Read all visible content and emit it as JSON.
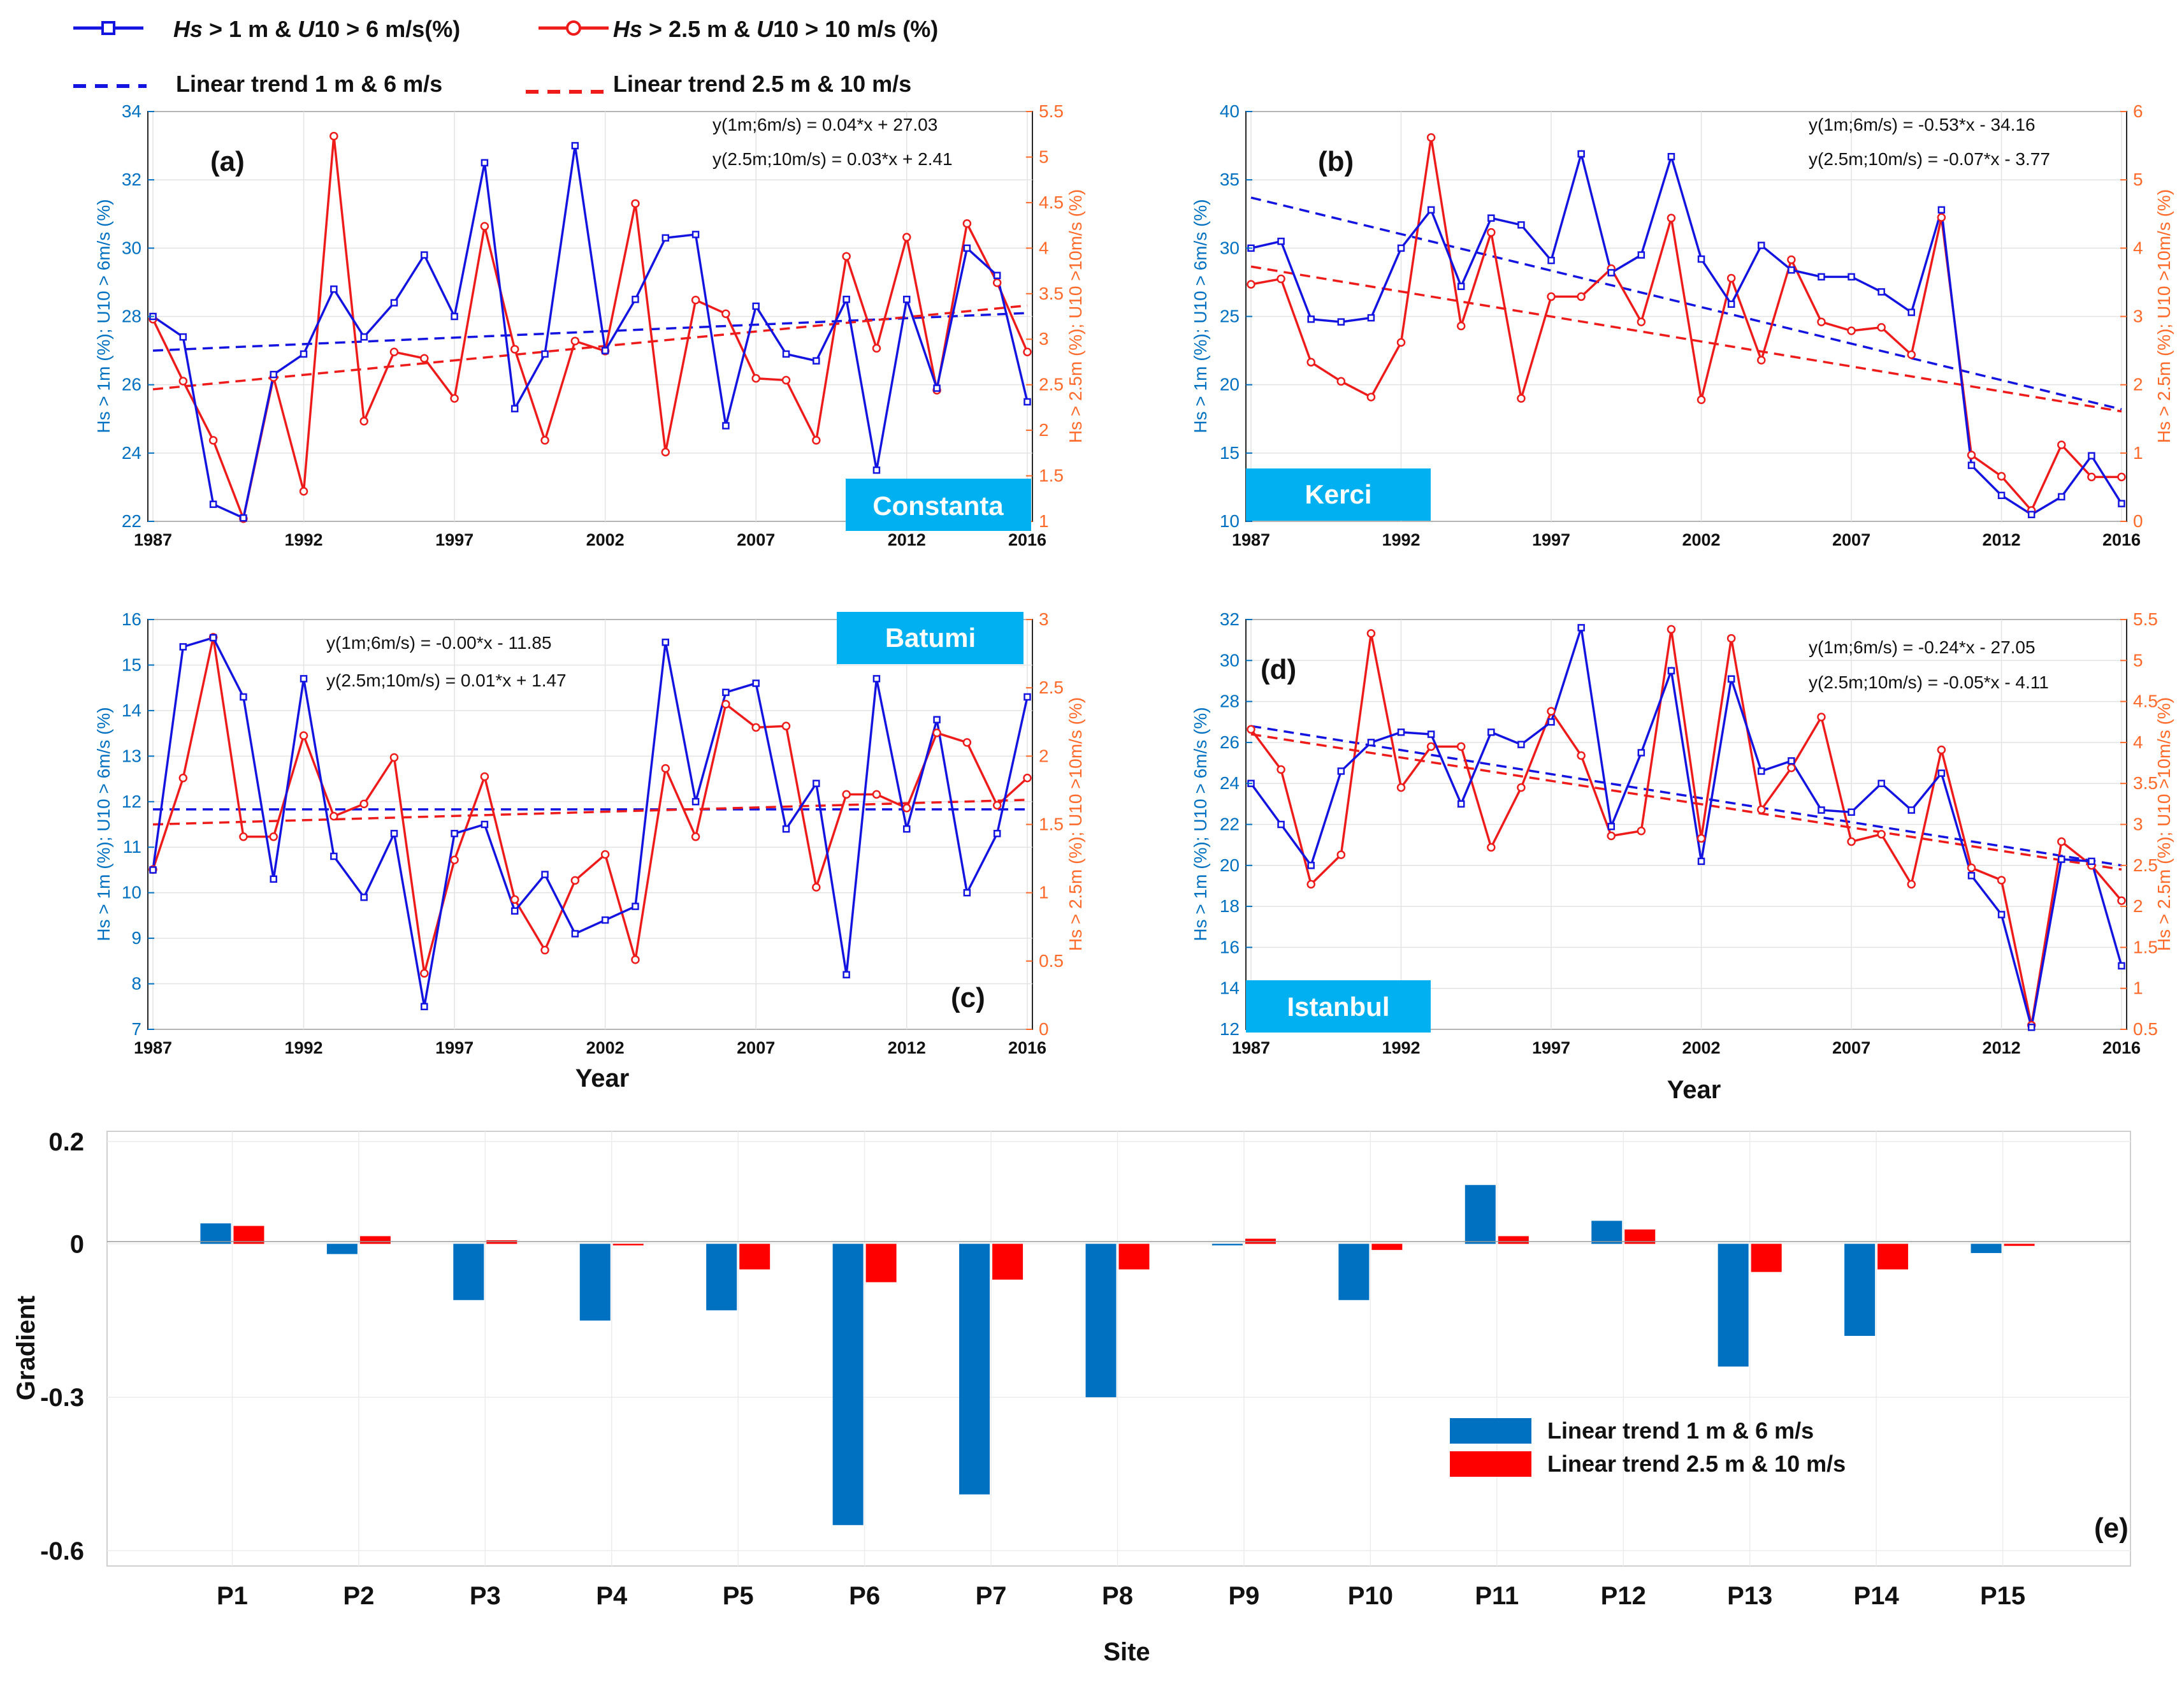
{
  "legend_top": {
    "hs1_prefix": "Hs",
    "hs1_mid": " > 1 m & ",
    "hs1_u": "U",
    "hs1_suffix": "10 > 6 m/s(%)",
    "hs25_prefix": "Hs",
    "hs25_mid": " > 2.5 m & ",
    "hs25_u": "U",
    "hs25_suffix": "10 > 10 m/s (%)",
    "trend1": "Linear trend 1 m & 6 m/s",
    "trend25": "Linear trend 2.5 m & 10 m/s"
  },
  "colors": {
    "blue": "#1414e0",
    "red": "#ee1b1b",
    "left_axis": "#0070c0",
    "right_axis": "#ff6a2a",
    "badge": "#00b0f0",
    "bar_blue": "#0070c0",
    "bar_red": "#ff0000"
  },
  "chart_data": [
    {
      "id": "a",
      "type": "line",
      "panel_label": "(a)",
      "site": "Constanta",
      "years": [
        1987,
        1988,
        1989,
        1990,
        1991,
        1992,
        1993,
        1994,
        1995,
        1996,
        1997,
        1998,
        1999,
        2000,
        2001,
        2002,
        2003,
        2004,
        2005,
        2006,
        2007,
        2008,
        2009,
        2010,
        2011,
        2012,
        2013,
        2014,
        2015,
        2016
      ],
      "year_ticks": [
        "1987",
        "1992",
        "1997",
        "2002",
        "2007",
        "2012",
        "2016"
      ],
      "ylabel_left": "Hs > 1m (%); U10 > 6m/s (%)",
      "ylabel_right": "Hs > 2.5m (%); U10 >10m/s (%)",
      "y_left": {
        "min": 22,
        "max": 34,
        "ticks": [
          22,
          24,
          26,
          28,
          30,
          32,
          34
        ]
      },
      "y_right": {
        "min": 1,
        "max": 5.5,
        "ticks": [
          1,
          1.5,
          2,
          2.5,
          3,
          3.5,
          4,
          4.5,
          5,
          5.5
        ]
      },
      "eq1": "y(1m;6m/s) = 0.04*x + 27.03",
      "eq2": "y(2.5m;10m/s) = 0.03*x + 2.41",
      "xlabel": "",
      "series": [
        {
          "name": "Hs > 1 m & U10 > 6 m/s(%)",
          "axis": "left",
          "values": [
            28.0,
            27.4,
            22.5,
            22.1,
            26.3,
            26.9,
            28.8,
            27.4,
            28.4,
            29.8,
            28.0,
            32.5,
            25.3,
            26.9,
            33.0,
            27.0,
            28.5,
            30.3,
            30.4,
            24.8,
            28.3,
            26.9,
            26.7,
            28.5,
            23.5,
            28.5,
            25.9,
            30.0,
            29.2,
            25.5
          ]
        },
        {
          "name": "Hs > 2.5 m & U10 > 10 m/s (%)",
          "axis": "right",
          "values": [
            3.22,
            2.54,
            1.89,
            1.03,
            2.58,
            1.33,
            5.23,
            2.1,
            2.86,
            2.79,
            2.35,
            4.24,
            2.89,
            1.89,
            2.98,
            2.87,
            4.49,
            1.76,
            3.43,
            3.28,
            2.57,
            2.55,
            1.89,
            3.91,
            2.9,
            4.12,
            2.44,
            4.27,
            3.62,
            2.86
          ]
        },
        {
          "name": "Linear trend 1 m & 6 m/s",
          "axis": "left",
          "trend": [
            27.0,
            28.1
          ]
        },
        {
          "name": "Linear trend 2.5 m & 10 m/s",
          "axis": "right",
          "trend": [
            2.45,
            3.37
          ]
        }
      ]
    },
    {
      "id": "b",
      "type": "line",
      "panel_label": "(b)",
      "site": "Kerci",
      "years": [
        1987,
        1988,
        1989,
        1990,
        1991,
        1992,
        1993,
        1994,
        1995,
        1996,
        1997,
        1998,
        1999,
        2000,
        2001,
        2002,
        2003,
        2004,
        2005,
        2006,
        2007,
        2008,
        2009,
        2010,
        2011,
        2012,
        2013,
        2014,
        2015,
        2016
      ],
      "year_ticks": [
        "1987",
        "1992",
        "1997",
        "2002",
        "2007",
        "2012",
        "2016"
      ],
      "ylabel_left": "Hs > 1m (%); U10 > 6m/s (%)",
      "ylabel_right": "Hs > 2.5m (%); U10 >10m/s (%)",
      "y_left": {
        "min": 10,
        "max": 40,
        "ticks": [
          10,
          15,
          20,
          25,
          30,
          35,
          40
        ]
      },
      "y_right": {
        "min": 0,
        "max": 6,
        "ticks": [
          0,
          1,
          2,
          3,
          4,
          5,
          6
        ]
      },
      "eq1": "y(1m;6m/s) = -0.53*x - 34.16",
      "eq2": "y(2.5m;10m/s) = -0.07*x - 3.77",
      "xlabel": "",
      "series": [
        {
          "name": "Hs > 1 m & U10 > 6 m/s(%)",
          "axis": "left",
          "values": [
            30.0,
            30.5,
            24.8,
            24.6,
            24.9,
            30.0,
            32.8,
            27.2,
            32.2,
            31.7,
            29.1,
            36.9,
            28.2,
            29.5,
            36.7,
            29.2,
            25.9,
            30.2,
            28.4,
            27.9,
            27.9,
            26.8,
            25.3,
            32.8,
            14.1,
            11.9,
            10.5,
            11.8,
            14.8,
            11.3
          ]
        },
        {
          "name": "Hs > 2.5 m & U10 > 10 m/s (%)",
          "axis": "right",
          "values": [
            3.47,
            3.55,
            2.33,
            2.05,
            1.82,
            2.62,
            5.62,
            2.86,
            4.23,
            1.8,
            3.29,
            3.29,
            3.7,
            2.92,
            4.44,
            1.78,
            3.56,
            2.36,
            3.83,
            2.92,
            2.79,
            2.84,
            2.44,
            4.45,
            0.97,
            0.66,
            0.16,
            1.12,
            0.65,
            0.65
          ]
        },
        {
          "name": "Linear trend 1 m & 6 m/s",
          "axis": "left",
          "trend": [
            33.7,
            18.2
          ]
        },
        {
          "name": "Linear trend 2.5 m & 10 m/s",
          "axis": "right",
          "trend": [
            3.73,
            1.61
          ]
        }
      ]
    },
    {
      "id": "c",
      "type": "line",
      "panel_label": "(c)",
      "site": "Batumi",
      "years": [
        1987,
        1988,
        1989,
        1990,
        1991,
        1992,
        1993,
        1994,
        1995,
        1996,
        1997,
        1998,
        1999,
        2000,
        2001,
        2002,
        2003,
        2004,
        2005,
        2006,
        2007,
        2008,
        2009,
        2010,
        2011,
        2012,
        2013,
        2014,
        2015,
        2016
      ],
      "year_ticks": [
        "1987",
        "1992",
        "1997",
        "2002",
        "2007",
        "2012",
        "2016"
      ],
      "ylabel_left": "Hs > 1m (%); U10 > 6m/s (%)",
      "ylabel_right": "Hs > 2.5m (%); U10 >10m/s (%)",
      "y_left": {
        "min": 7,
        "max": 16,
        "ticks": [
          7,
          8,
          9,
          10,
          11,
          12,
          13,
          14,
          15,
          16
        ]
      },
      "y_right": {
        "min": 0,
        "max": 3,
        "ticks": [
          0,
          0.5,
          1,
          1.5,
          2,
          2.5,
          3
        ]
      },
      "eq1": "y(1m;6m/s) = -0.00*x - 11.85",
      "eq2": "y(2.5m;10m/s) = 0.01*x + 1.47",
      "xlabel": "Year",
      "series": [
        {
          "name": "Hs > 1 m & U10 > 6 m/s(%)",
          "axis": "left",
          "values": [
            10.5,
            15.4,
            15.6,
            14.3,
            10.3,
            14.7,
            10.8,
            9.9,
            11.3,
            7.5,
            11.3,
            11.5,
            9.6,
            10.4,
            9.1,
            9.4,
            9.7,
            15.5,
            12.0,
            14.4,
            14.6,
            11.4,
            12.4,
            8.2,
            14.7,
            11.4,
            13.8,
            10.0,
            11.3,
            14.3
          ]
        },
        {
          "name": "Hs > 2.5 m & U10 > 10 m/s (%)",
          "axis": "right",
          "values": [
            1.17,
            1.84,
            2.87,
            1.41,
            1.41,
            2.15,
            1.56,
            1.65,
            1.99,
            0.41,
            1.24,
            1.85,
            0.95,
            0.58,
            1.09,
            1.28,
            0.51,
            1.91,
            1.41,
            2.38,
            2.21,
            2.22,
            1.04,
            1.72,
            1.72,
            1.62,
            2.17,
            2.1,
            1.64,
            1.84
          ]
        },
        {
          "name": "Linear trend 1 m & 6 m/s",
          "axis": "left",
          "trend": [
            11.83,
            11.83
          ]
        },
        {
          "name": "Linear trend 2.5 m & 10 m/s",
          "axis": "right",
          "trend": [
            1.5,
            1.68
          ]
        }
      ]
    },
    {
      "id": "d",
      "type": "line",
      "panel_label": "(d)",
      "site": "Istanbul",
      "years": [
        1987,
        1988,
        1989,
        1990,
        1991,
        1992,
        1993,
        1994,
        1995,
        1996,
        1997,
        1998,
        1999,
        2000,
        2001,
        2002,
        2003,
        2004,
        2005,
        2006,
        2007,
        2008,
        2009,
        2010,
        2011,
        2012,
        2013,
        2014,
        2015,
        2016
      ],
      "year_ticks": [
        "1987",
        "1992",
        "1997",
        "2002",
        "2007",
        "2012",
        "2016"
      ],
      "ylabel_left": "Hs > 1m (%); U10 > 6m/s (%)",
      "ylabel_right": "Hs > 2.5m (%); U10 >10m/s (%)",
      "y_left": {
        "min": 12,
        "max": 32,
        "ticks": [
          12,
          14,
          16,
          18,
          20,
          22,
          24,
          26,
          28,
          30,
          32
        ]
      },
      "y_right": {
        "min": 0.5,
        "max": 5.5,
        "ticks": [
          0.5,
          1,
          1.5,
          2,
          2.5,
          3,
          3.5,
          4,
          4.5,
          5,
          5.5
        ]
      },
      "eq1": "y(1m;6m/s) = -0.24*x - 27.05",
      "eq2": "y(2.5m;10m/s) = -0.05*x - 4.11",
      "xlabel": "Year",
      "series": [
        {
          "name": "Hs > 1 m & U10 > 6 m/s(%)",
          "axis": "left",
          "values": [
            24.0,
            22.0,
            20.0,
            24.6,
            26.0,
            26.5,
            26.4,
            23.0,
            26.5,
            25.9,
            27.0,
            31.6,
            21.9,
            25.5,
            29.5,
            20.2,
            29.1,
            24.6,
            25.1,
            22.7,
            22.6,
            24.0,
            22.7,
            24.5,
            19.5,
            17.6,
            12.1,
            20.3,
            20.2,
            15.1
          ]
        },
        {
          "name": "Hs > 2.5 m & U10 > 10 m/s (%)",
          "axis": "right",
          "values": [
            4.16,
            3.67,
            2.27,
            2.63,
            5.33,
            3.45,
            3.95,
            3.95,
            2.72,
            3.45,
            4.38,
            3.84,
            2.86,
            2.92,
            5.38,
            2.83,
            5.27,
            3.18,
            3.69,
            4.31,
            2.79,
            2.88,
            2.27,
            3.91,
            2.47,
            2.32,
            0.55,
            2.79,
            2.5,
            2.07
          ]
        },
        {
          "name": "Linear trend 1 m & 6 m/s",
          "axis": "left",
          "trend": [
            26.8,
            20.0
          ]
        },
        {
          "name": "Linear trend 2.5 m & 10 m/s",
          "axis": "right",
          "trend": [
            4.1,
            2.45
          ]
        }
      ]
    },
    {
      "id": "e",
      "type": "bar",
      "panel_label": "(e)",
      "categories": [
        "P1",
        "P2",
        "P3",
        "P4",
        "P5",
        "P6",
        "P7",
        "P8",
        "P9",
        "P10",
        "P11",
        "P12",
        "P13",
        "P14",
        "P15"
      ],
      "xlabel": "Site",
      "ylabel": "Gradient",
      "ylim": [
        -0.63,
        0.22
      ],
      "yticks": [
        0.2,
        0,
        -0.3,
        -0.6
      ],
      "ytick_labels": [
        "0.2",
        "0",
        "-0.3",
        "-0.6"
      ],
      "series": [
        {
          "name": "Linear trend 1 m & 6 m/s",
          "values": [
            0.04,
            -0.02,
            -0.11,
            -0.15,
            -0.13,
            -0.55,
            -0.49,
            -0.3,
            -0.003,
            -0.11,
            0.115,
            0.045,
            -0.24,
            -0.18,
            -0.018
          ]
        },
        {
          "name": "Linear trend 2.5 m & 10 m/s",
          "values": [
            0.035,
            0.015,
            0.007,
            -0.003,
            -0.05,
            -0.075,
            -0.07,
            -0.05,
            0.01,
            -0.012,
            0.015,
            0.028,
            -0.055,
            -0.05,
            -0.004
          ]
        }
      ]
    }
  ]
}
